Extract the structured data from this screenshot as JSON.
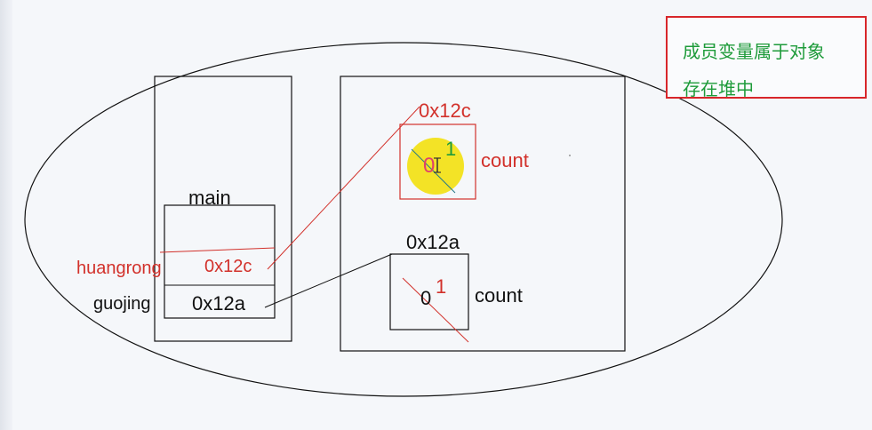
{
  "note": {
    "line1": "成员变量属于对象",
    "line2": "存在堆中"
  },
  "stack": {
    "frame_label": "main",
    "var_huangrong": "huangrong",
    "var_huangrong_value": "0x12c",
    "var_guojing": "guojing",
    "var_guojing_value": "0x12a"
  },
  "heap": {
    "object_top": {
      "address": "0x12c",
      "field_name": "count",
      "old_value": "0",
      "new_value": "1"
    },
    "object_bottom": {
      "address": "0x12a",
      "field_name": "count",
      "old_value": "0",
      "new_value": "1"
    }
  },
  "colors": {
    "red": "#d2312b",
    "green": "#1e9b3a",
    "highlight": "#f2e21a"
  }
}
